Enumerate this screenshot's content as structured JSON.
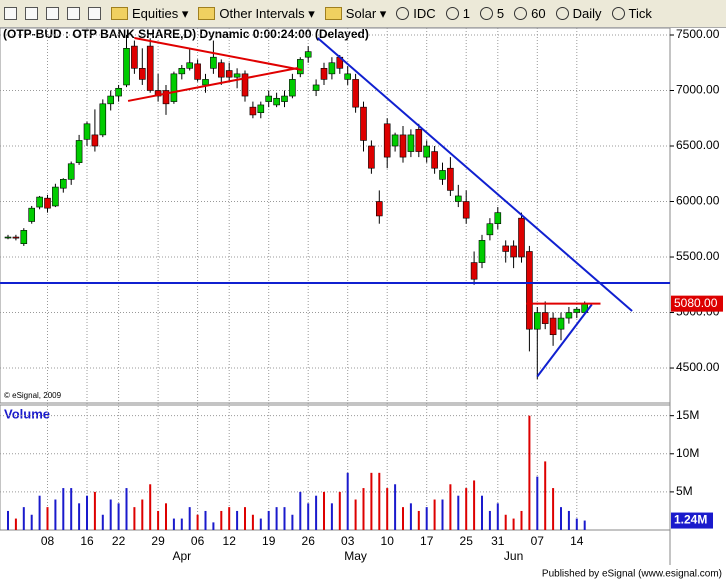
{
  "toolbar": {
    "items": [
      "Equities",
      "Other Intervals",
      "Solar",
      "IDC",
      "1",
      "5",
      "60",
      "Daily",
      "Tick"
    ]
  },
  "footer": "Published by eSignal (www.esignal.com)",
  "chart_data": {
    "type": "candlestick",
    "title": "(OTP-BUD : OTP BANK SHARE,D) Dynamic 0:00:24:00 (Delayed)",
    "copyright": "© eSignal, 2009",
    "up_color": "#00cc00",
    "down_color": "#dd0000",
    "categories": [
      null,
      null,
      null,
      null,
      null,
      "08",
      null,
      null,
      null,
      null,
      "16",
      null,
      null,
      null,
      "22",
      null,
      null,
      null,
      null,
      "29",
      null,
      null,
      null,
      null,
      "06",
      null,
      null,
      null,
      "12",
      null,
      null,
      null,
      null,
      "19",
      null,
      null,
      null,
      null,
      "26",
      null,
      null,
      null,
      null,
      "03",
      null,
      null,
      null,
      null,
      "10",
      null,
      null,
      null,
      null,
      "17",
      null,
      null,
      null,
      null,
      "25",
      null,
      null,
      null,
      "31",
      null,
      null,
      null,
      null,
      "07",
      null,
      null,
      null,
      null,
      "14",
      null
    ],
    "months": [
      null,
      null,
      null,
      null,
      null,
      null,
      null,
      null,
      null,
      null,
      null,
      null,
      null,
      null,
      null,
      null,
      null,
      null,
      null,
      null,
      null,
      null,
      "Apr",
      null,
      null,
      null,
      null,
      null,
      null,
      null,
      null,
      null,
      null,
      null,
      null,
      null,
      null,
      null,
      null,
      null,
      null,
      null,
      null,
      null,
      "May",
      null,
      null,
      null,
      null,
      null,
      null,
      null,
      null,
      null,
      null,
      null,
      null,
      null,
      null,
      null,
      null,
      null,
      null,
      null,
      "Jun",
      null,
      null,
      null,
      null,
      null,
      null,
      null,
      null,
      null
    ],
    "open": [
      5680,
      5680,
      5620,
      5820,
      5950,
      6030,
      5960,
      6120,
      6200,
      6350,
      6560,
      6600,
      6600,
      6880,
      6950,
      7050,
      7400,
      7200,
      7400,
      7000,
      7000,
      6900,
      7150,
      7200,
      7240,
      7050,
      7200,
      7250,
      7180,
      7120,
      7150,
      6850,
      6800,
      6900,
      6870,
      6900,
      6950,
      7150,
      7300,
      7000,
      7200,
      7150,
      7300,
      7100,
      7100,
      6850,
      6500,
      6000,
      6700,
      6500,
      6600,
      6450,
      6650,
      6400,
      6450,
      6200,
      6300,
      6000,
      6000,
      5450,
      5450,
      5700,
      5800,
      5600,
      5600,
      5850,
      5550,
      4850,
      5000,
      4950,
      4850,
      4950,
      5000,
      5000
    ],
    "high": [
      5700,
      5700,
      5760,
      5960,
      6050,
      6060,
      6160,
      6210,
      6360,
      6600,
      6720,
      6830,
      6920,
      7000,
      7050,
      7500,
      7450,
      7380,
      7470,
      7150,
      7050,
      7170,
      7230,
      7380,
      7280,
      7150,
      7450,
      7280,
      7250,
      7200,
      7180,
      6900,
      6900,
      7000,
      6980,
      7000,
      7150,
      7300,
      7400,
      7100,
      7250,
      7300,
      7320,
      7220,
      7150,
      6900,
      6550,
      6100,
      6750,
      6620,
      6680,
      6650,
      6700,
      6550,
      6500,
      6350,
      6400,
      6150,
      6100,
      5550,
      5700,
      5850,
      5950,
      5650,
      5650,
      5900,
      5600,
      5050,
      5100,
      5000,
      5000,
      5050,
      5050,
      5100
    ],
    "low": [
      5660,
      5650,
      5600,
      5800,
      5930,
      5900,
      5950,
      6080,
      6150,
      6330,
      6500,
      6450,
      6580,
      6820,
      6900,
      7030,
      7150,
      7050,
      6980,
      6900,
      6780,
      6880,
      7100,
      7180,
      7080,
      6980,
      7150,
      7050,
      7080,
      7020,
      6900,
      6750,
      6750,
      6850,
      6850,
      6850,
      6930,
      7120,
      7250,
      6950,
      7050,
      7100,
      7150,
      7050,
      6800,
      6450,
      6250,
      5800,
      6300,
      6450,
      6350,
      6400,
      6400,
      6350,
      6250,
      6150,
      6050,
      5950,
      5800,
      5250,
      5400,
      5650,
      5750,
      5450,
      5400,
      5450,
      4650,
      4400,
      4850,
      4700,
      4750,
      4900,
      4950,
      4980
    ],
    "close": [
      5680,
      5670,
      5740,
      5940,
      6040,
      5940,
      6130,
      6200,
      6340,
      6550,
      6700,
      6500,
      6880,
      6950,
      7020,
      7380,
      7200,
      7100,
      7000,
      6950,
      6880,
      7150,
      7200,
      7250,
      7100,
      7100,
      7300,
      7120,
      7120,
      7150,
      6950,
      6780,
      6870,
      6950,
      6930,
      6950,
      7100,
      7280,
      7350,
      7050,
      7100,
      7250,
      7200,
      7150,
      6850,
      6550,
      6300,
      5870,
      6400,
      6600,
      6400,
      6600,
      6450,
      6500,
      6300,
      6280,
      6100,
      6050,
      5850,
      5300,
      5650,
      5800,
      5900,
      5550,
      5500,
      5500,
      4850,
      5000,
      4900,
      4800,
      4950,
      5000,
      5030,
      5080
    ],
    "ylim": [
      4185,
      7563
    ],
    "yticks": [
      {
        "value": 4500,
        "label": "4500.00"
      },
      {
        "value": 5000,
        "label": "5000.00"
      },
      {
        "value": 5500,
        "label": "5500.00"
      },
      {
        "value": 6000,
        "label": "6000.00"
      },
      {
        "value": 6500,
        "label": "6500.00"
      },
      {
        "value": 7000,
        "label": "7000.00"
      },
      {
        "value": 7500,
        "label": "7500.00"
      }
    ],
    "last_label": "5080.00",
    "trendlines": [
      {
        "color": "#e00000",
        "x": [
          16,
          37.2
        ],
        "y": [
          7473,
          7185
        ]
      },
      {
        "color": "#e00000",
        "x": [
          15.2,
          36.7
        ],
        "y": [
          6906,
          7203
        ]
      },
      {
        "color": "#1020d0",
        "x": [
          39.2,
          79
        ],
        "y": [
          7473,
          5014
        ]
      },
      {
        "color": "#1020d0",
        "x": [
          -1,
          84
        ],
        "y": [
          5266,
          5266
        ]
      },
      {
        "color": "#1020d0",
        "x": [
          67,
          73.9
        ],
        "y": [
          4424,
          5072
        ]
      },
      {
        "color": "#e00000",
        "x": [
          65.6,
          75
        ],
        "y": [
          5080,
          5080
        ]
      }
    ],
    "volume": {
      "title": "Volume",
      "up_color": "#1a1acc",
      "down_color": "#dd0000",
      "values": [
        2.5,
        1.5,
        3,
        2,
        4.5,
        3,
        4,
        5.5,
        5.5,
        3.5,
        4.5,
        5,
        2,
        4,
        3.5,
        5.5,
        3,
        4,
        6,
        2.5,
        3.5,
        1.5,
        1.5,
        3,
        2,
        2.5,
        1,
        2.5,
        3,
        2.5,
        3,
        2,
        1.5,
        2.5,
        3,
        3,
        2,
        5,
        3.5,
        4.5,
        5,
        3.5,
        5,
        7.5,
        4,
        5.5,
        7.5,
        7.5,
        5.5,
        6,
        3,
        3.5,
        2.5,
        3,
        4,
        4,
        6,
        4.5,
        5.5,
        6.5,
        4.5,
        2.5,
        3.5,
        2,
        1.5,
        2.5,
        15,
        7,
        9,
        5.5,
        3,
        2.5,
        1.5,
        1.24
      ],
      "ylim": [
        0,
        16.4
      ],
      "yticks": [
        {
          "value": 5,
          "label": "5M"
        },
        {
          "value": 10,
          "label": "10M"
        },
        {
          "value": 15,
          "label": "15M"
        }
      ],
      "last_label": "1.24M"
    }
  }
}
